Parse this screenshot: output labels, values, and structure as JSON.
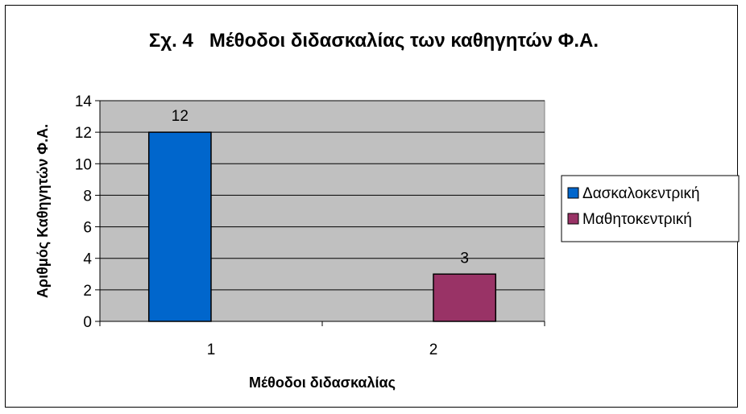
{
  "chart_data": {
    "type": "bar",
    "title": "Σχ. 4   Μέθοδοι διδασκαλίας των καθηγητών Φ.Α.",
    "xlabel": "Μέθοδοι διδασκαλίας",
    "ylabel": "Αριθμός Καθηγητών Φ.Α.",
    "categories": [
      "1",
      "2"
    ],
    "series": [
      {
        "name": "Δασκαλοκεντρική",
        "values": [
          12,
          null
        ],
        "color": "#0066CC"
      },
      {
        "name": "Μαθητοκεντρική",
        "values": [
          null,
          3
        ],
        "color": "#993366"
      }
    ],
    "data_labels": [
      "12",
      "3"
    ],
    "ylim": [
      0,
      14
    ],
    "yticks": [
      0,
      2,
      4,
      6,
      8,
      10,
      12,
      14
    ],
    "grid": true,
    "plot_background": "#C0C0C0",
    "legend_position": "right"
  }
}
